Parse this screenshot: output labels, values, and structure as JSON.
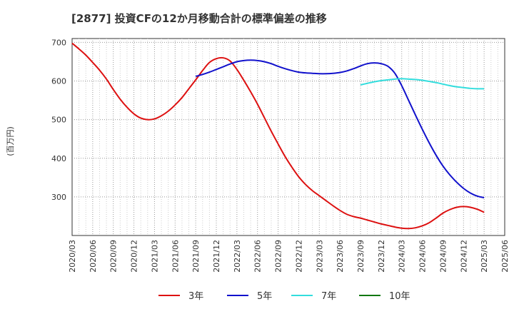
{
  "chart_data": {
    "type": "line",
    "title": "[2877]  投資CFの12か月移動合計の標準偏差の推移",
    "ylabel": "(百万円)",
    "xlabel": "",
    "ylim": [
      200,
      710
    ],
    "yticks": [
      300,
      400,
      500,
      600,
      700
    ],
    "x_tick_labels": [
      "2020/03",
      "2020/06",
      "2020/09",
      "2020/12",
      "2021/03",
      "2021/06",
      "2021/09",
      "2021/12",
      "2022/03",
      "2022/06",
      "2022/09",
      "2022/12",
      "2023/03",
      "2023/06",
      "2023/09",
      "2023/12",
      "2024/03",
      "2024/06",
      "2024/09",
      "2024/12",
      "2025/03",
      "2025/06"
    ],
    "grid": true,
    "legend_position": "bottom",
    "series": [
      {
        "name": "3年",
        "color": "#dd1111",
        "x": [
          "2020/03",
          "2020/04",
          "2020/05",
          "2020/06",
          "2020/07",
          "2020/08",
          "2020/09",
          "2020/10",
          "2020/11",
          "2020/12",
          "2021/01",
          "2021/02",
          "2021/03",
          "2021/04",
          "2021/05",
          "2021/06",
          "2021/07",
          "2021/08",
          "2021/09",
          "2021/10",
          "2021/11",
          "2021/12",
          "2022/01",
          "2022/02",
          "2022/03",
          "2022/04",
          "2022/05",
          "2022/06",
          "2022/07",
          "2022/08",
          "2022/09",
          "2022/10",
          "2022/11",
          "2022/12",
          "2023/01",
          "2023/02",
          "2023/03",
          "2023/04",
          "2023/05",
          "2023/06",
          "2023/07",
          "2023/08",
          "2023/09",
          "2023/10",
          "2023/11",
          "2023/12",
          "2024/01",
          "2024/02",
          "2024/03",
          "2024/04",
          "2024/05",
          "2024/06",
          "2024/07",
          "2024/08",
          "2024/09",
          "2024/10",
          "2024/11",
          "2024/12",
          "2025/01",
          "2025/02",
          "2025/03"
        ],
        "values": [
          698,
          683,
          667,
          648,
          628,
          605,
          578,
          553,
          532,
          515,
          504,
          500,
          502,
          510,
          522,
          538,
          557,
          580,
          603,
          627,
          648,
          658,
          660,
          652,
          630,
          602,
          572,
          540,
          505,
          470,
          437,
          405,
          377,
          352,
          332,
          316,
          303,
          290,
          277,
          265,
          255,
          249,
          245,
          240,
          235,
          230,
          226,
          222,
          219,
          218,
          220,
          225,
          233,
          245,
          258,
          267,
          273,
          275,
          273,
          268,
          260
        ]
      },
      {
        "name": "5年",
        "color": "#1111cc",
        "x": [
          "2021/09",
          "2021/10",
          "2021/11",
          "2021/12",
          "2022/01",
          "2022/02",
          "2022/03",
          "2022/04",
          "2022/05",
          "2022/06",
          "2022/07",
          "2022/08",
          "2022/09",
          "2022/10",
          "2022/11",
          "2022/12",
          "2023/01",
          "2023/02",
          "2023/03",
          "2023/04",
          "2023/05",
          "2023/06",
          "2023/07",
          "2023/08",
          "2023/09",
          "2023/10",
          "2023/11",
          "2023/12",
          "2024/01",
          "2024/02",
          "2024/03",
          "2024/04",
          "2024/05",
          "2024/06",
          "2024/07",
          "2024/08",
          "2024/09",
          "2024/10",
          "2024/11",
          "2024/12",
          "2025/01",
          "2025/02",
          "2025/03"
        ],
        "values": [
          612,
          617,
          623,
          630,
          637,
          644,
          650,
          653,
          654,
          653,
          650,
          645,
          638,
          632,
          627,
          623,
          621,
          620,
          619,
          619,
          620,
          622,
          626,
          632,
          639,
          645,
          647,
          645,
          638,
          620,
          588,
          550,
          512,
          475,
          440,
          408,
          380,
          357,
          338,
          322,
          310,
          302,
          298
        ]
      },
      {
        "name": "7年",
        "color": "#33dddd",
        "x": [
          "2023/09",
          "2023/10",
          "2023/11",
          "2023/12",
          "2024/01",
          "2024/02",
          "2024/03",
          "2024/04",
          "2024/05",
          "2024/06",
          "2024/07",
          "2024/08",
          "2024/09",
          "2024/10",
          "2024/11",
          "2024/12",
          "2025/01",
          "2025/02",
          "2025/03"
        ],
        "values": [
          590,
          594,
          598,
          601,
          603,
          605,
          606,
          605,
          604,
          602,
          599,
          596,
          592,
          588,
          585,
          583,
          581,
          580,
          580
        ]
      },
      {
        "name": "10年",
        "color": "#117711",
        "x": [],
        "values": []
      }
    ]
  }
}
